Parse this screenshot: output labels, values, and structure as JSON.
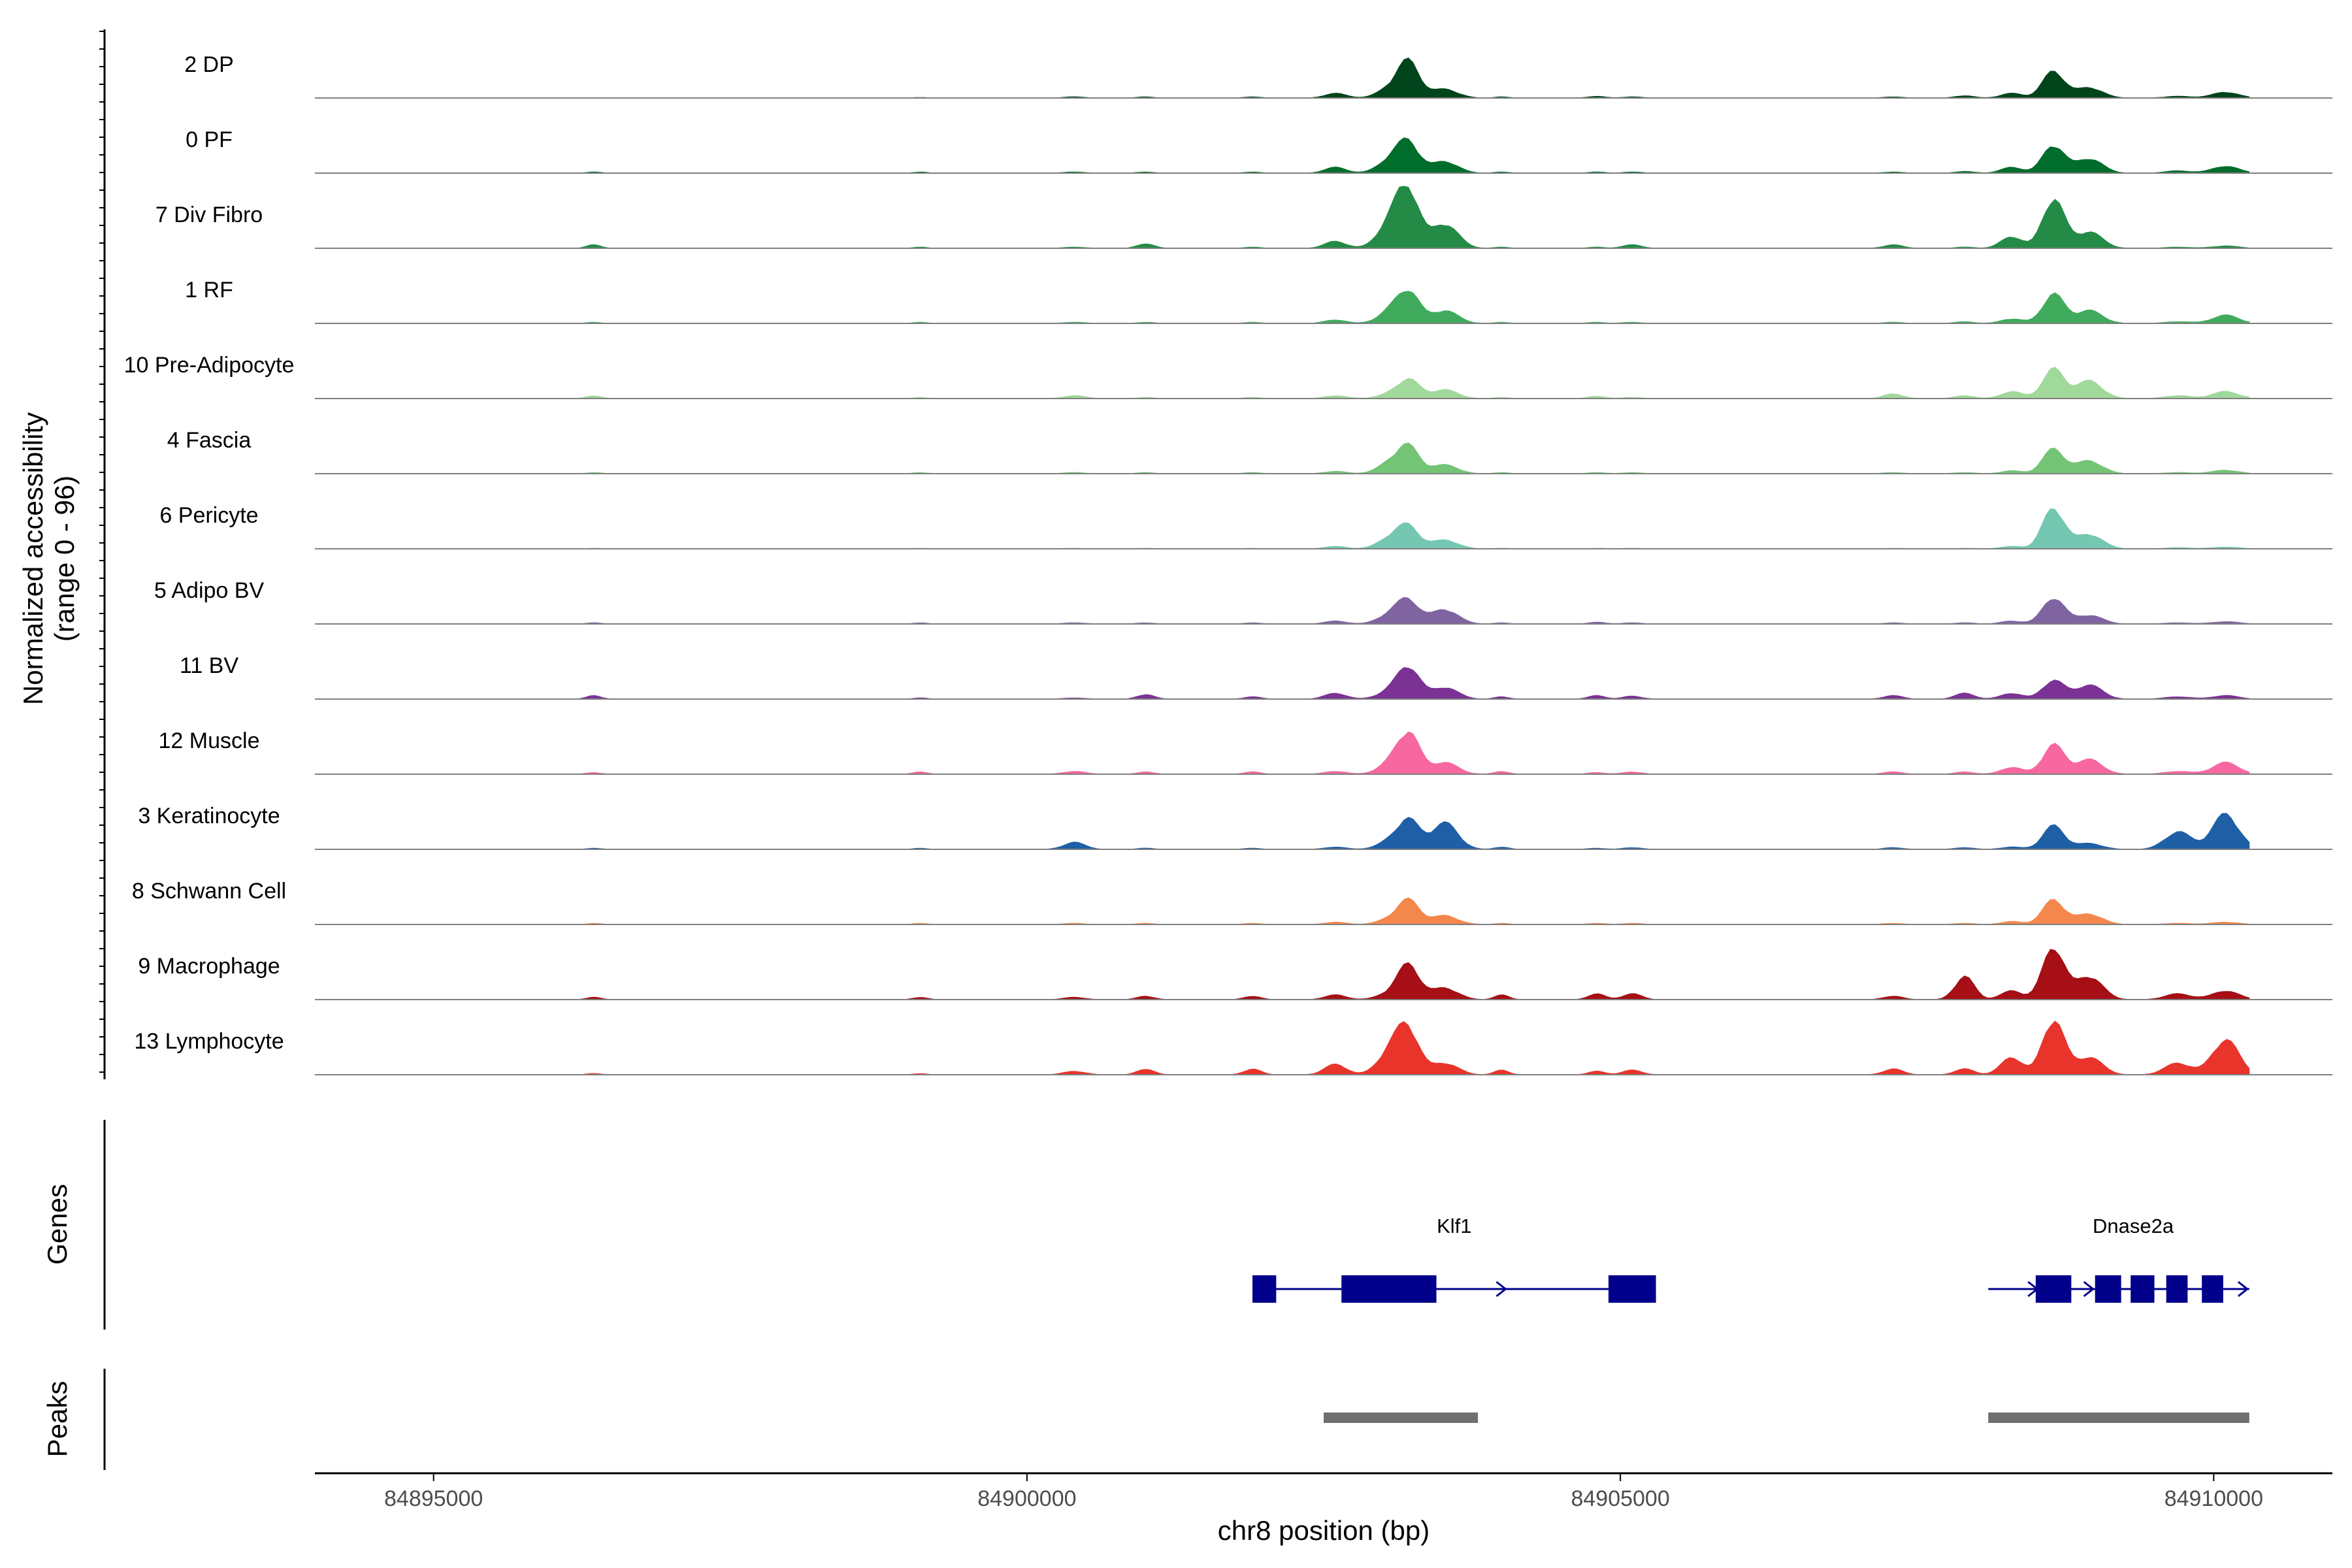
{
  "chart_data": {
    "type": "area",
    "title": "",
    "ylabel_line1": "Normalized accessibility",
    "ylabel_line2": "(range 0 - 96)",
    "ylim": [
      0,
      96
    ],
    "xlabel": "chr8 position (bp)",
    "xlim": [
      84894000,
      84911000
    ],
    "xticks": [
      84895000,
      84900000,
      84905000,
      84910000
    ],
    "xtick_labels": [
      "84895000",
      "84900000",
      "84905000",
      "84910000"
    ],
    "panel_labels": {
      "genes": "Genes",
      "peaks": "Peaks"
    },
    "profile_peaks": [
      {
        "pos": 84896350,
        "width": 60
      },
      {
        "pos": 84899100,
        "width": 60
      },
      {
        "pos": 84900400,
        "width": 90
      },
      {
        "pos": 84901000,
        "width": 70
      },
      {
        "pos": 84901900,
        "width": 70
      },
      {
        "pos": 84902600,
        "width": 90
      },
      {
        "pos": 84903080,
        "width": 110
      },
      {
        "pos": 84903220,
        "width": 90
      },
      {
        "pos": 84903520,
        "width": 110
      },
      {
        "pos": 84904000,
        "width": 60
      },
      {
        "pos": 84904800,
        "width": 70
      },
      {
        "pos": 84905100,
        "width": 80
      },
      {
        "pos": 84907300,
        "width": 80
      },
      {
        "pos": 84907900,
        "width": 80
      },
      {
        "pos": 84908300,
        "width": 90
      },
      {
        "pos": 84908650,
        "width": 90
      },
      {
        "pos": 84908950,
        "width": 110
      },
      {
        "pos": 84909700,
        "width": 110
      },
      {
        "pos": 84910100,
        "width": 110
      }
    ],
    "series": [
      {
        "name": "2 DP",
        "color": "#00441b",
        "heights": [
          0,
          0.01,
          0.02,
          0.02,
          0.02,
          0.08,
          0.18,
          0.56,
          0.15,
          0.02,
          0.03,
          0.02,
          0.02,
          0.04,
          0.08,
          0.46,
          0.18,
          0.03,
          0.1
        ]
      },
      {
        "name": "0 PF",
        "color": "#006d2c",
        "heights": [
          0.02,
          0.02,
          0.02,
          0.02,
          0.02,
          0.1,
          0.25,
          0.45,
          0.2,
          0.02,
          0.02,
          0.02,
          0.02,
          0.03,
          0.1,
          0.48,
          0.25,
          0.04,
          0.12
        ]
      },
      {
        "name": "7 Div Fibro",
        "color": "#238b45",
        "heights": [
          0.06,
          0.02,
          0.02,
          0.08,
          0.02,
          0.12,
          0.5,
          0.85,
          0.42,
          0.02,
          0.02,
          0.06,
          0.06,
          0.02,
          0.2,
          0.85,
          0.28,
          0.02,
          0.04
        ]
      },
      {
        "name": "1 RF",
        "color": "#41ab5d",
        "heights": [
          0.02,
          0.02,
          0.02,
          0.02,
          0.02,
          0.06,
          0.22,
          0.48,
          0.22,
          0.02,
          0.02,
          0.02,
          0.02,
          0.03,
          0.08,
          0.5,
          0.22,
          0.03,
          0.14
        ]
      },
      {
        "name": "10 Pre-Adipocyte",
        "color": "#a1d99b",
        "heights": [
          0.05,
          0.02,
          0.05,
          0.02,
          0.02,
          0.05,
          0.08,
          0.3,
          0.15,
          0.02,
          0.04,
          0.02,
          0.08,
          0.05,
          0.12,
          0.5,
          0.3,
          0.05,
          0.12
        ]
      },
      {
        "name": "4 Fascia",
        "color": "#74c476",
        "heights": [
          0.02,
          0.02,
          0.02,
          0.02,
          0.02,
          0.04,
          0.2,
          0.4,
          0.15,
          0.02,
          0.02,
          0.02,
          0.02,
          0.02,
          0.05,
          0.42,
          0.22,
          0.02,
          0.06
        ]
      },
      {
        "name": "6 Pericyte",
        "color": "#74c7b0",
        "heights": [
          0.01,
          0.01,
          0.01,
          0.01,
          0.01,
          0.04,
          0.2,
          0.32,
          0.15,
          0.01,
          0.01,
          0.01,
          0.01,
          0.01,
          0.04,
          0.7,
          0.25,
          0.02,
          0.03
        ]
      },
      {
        "name": "5 Adipo BV",
        "color": "#8064a2",
        "heights": [
          0.02,
          0.02,
          0.02,
          0.02,
          0.02,
          0.05,
          0.18,
          0.35,
          0.25,
          0.02,
          0.03,
          0.02,
          0.02,
          0.02,
          0.05,
          0.45,
          0.15,
          0.02,
          0.04
        ]
      },
      {
        "name": "11 BV",
        "color": "#7b3294",
        "heights": [
          0.06,
          0.02,
          0.02,
          0.08,
          0.04,
          0.1,
          0.15,
          0.5,
          0.2,
          0.04,
          0.06,
          0.05,
          0.06,
          0.1,
          0.1,
          0.32,
          0.24,
          0.04,
          0.06
        ]
      },
      {
        "name": "12 Muscle",
        "color": "#f768a1",
        "heights": [
          0.03,
          0.04,
          0.05,
          0.04,
          0.04,
          0.05,
          0.2,
          0.65,
          0.2,
          0.05,
          0.03,
          0.04,
          0.04,
          0.04,
          0.12,
          0.5,
          0.25,
          0.05,
          0.2
        ]
      },
      {
        "name": "3 Keratinocyte",
        "color": "#1f5fa6",
        "heights": [
          0.02,
          0.02,
          0.12,
          0.02,
          0.02,
          0.04,
          0.15,
          0.45,
          0.45,
          0.04,
          0.02,
          0.03,
          0.03,
          0.03,
          0.04,
          0.4,
          0.1,
          0.3,
          0.6
        ]
      },
      {
        "name": "8 Schwann Cell",
        "color": "#f4874b",
        "heights": [
          0.02,
          0.02,
          0.02,
          0.02,
          0.02,
          0.04,
          0.1,
          0.38,
          0.15,
          0.02,
          0.02,
          0.02,
          0.02,
          0.02,
          0.05,
          0.42,
          0.18,
          0.02,
          0.04
        ]
      },
      {
        "name": "9 Macrophage",
        "color": "#a50f15",
        "heights": [
          0.04,
          0.04,
          0.04,
          0.06,
          0.06,
          0.08,
          0.12,
          0.55,
          0.2,
          0.08,
          0.1,
          0.1,
          0.06,
          0.4,
          0.15,
          0.9,
          0.4,
          0.1,
          0.15
        ]
      },
      {
        "name": "13 Lymphocyte",
        "color": "#e8342b",
        "heights": [
          0.02,
          0.02,
          0.06,
          0.1,
          0.1,
          0.18,
          0.45,
          0.65,
          0.2,
          0.08,
          0.06,
          0.08,
          0.1,
          0.1,
          0.3,
          0.95,
          0.3,
          0.2,
          0.6
        ]
      }
    ],
    "genes": [
      {
        "name": "Klf1",
        "start": 84901900,
        "end": 84905300,
        "strand": "+",
        "exons": [
          [
            84901900,
            84902100
          ],
          [
            84902650,
            84903450
          ],
          [
            84904900,
            84905300
          ]
        ],
        "arrows": [
          84901950,
          84904000
        ]
      },
      {
        "name": "Dnase2a",
        "start": 84908100,
        "end": 84910300,
        "strand": "+",
        "exons": [
          [
            84908500,
            84908800
          ],
          [
            84909000,
            84909220
          ],
          [
            84909300,
            84909500
          ],
          [
            84909600,
            84909780
          ],
          [
            84909900,
            84910080
          ]
        ],
        "arrows": [
          84908480,
          84908950,
          84910250
        ]
      }
    ],
    "gene_color": "#00008b",
    "peak_regions": [
      [
        84902500,
        84903800
      ],
      [
        84908100,
        84910300
      ]
    ],
    "peak_color": "#707070"
  }
}
